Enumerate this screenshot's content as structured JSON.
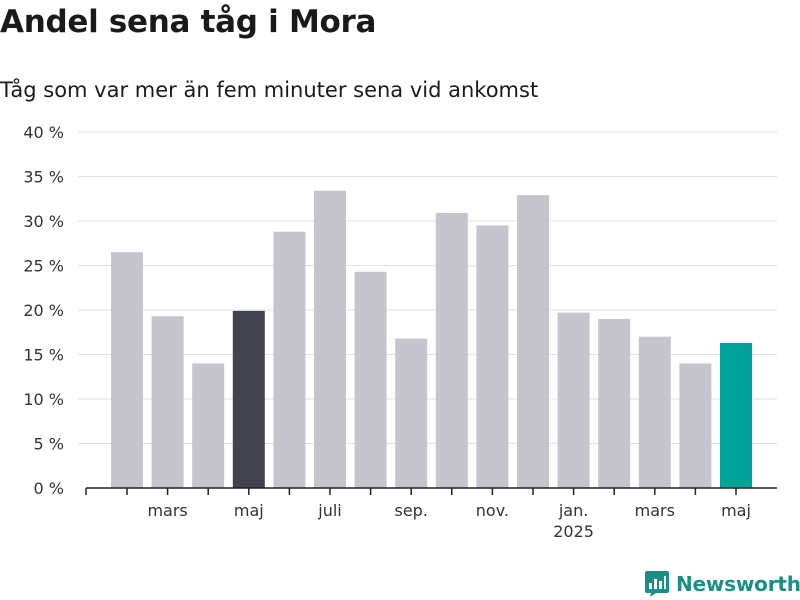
{
  "chart_data": {
    "type": "bar",
    "title": "Andel sena tåg i Mora",
    "subtitle": "Tåg som var mer än fem minuter sena vid ankomst",
    "xlabel": "",
    "ylabel": "",
    "ylim": [
      0,
      40
    ],
    "yticks": [
      0,
      5,
      10,
      15,
      20,
      25,
      30,
      35,
      40
    ],
    "ytick_labels": [
      "0 %",
      "5 %",
      "10 %",
      "15 %",
      "20 %",
      "25 %",
      "30 %",
      "35 %",
      "40 %"
    ],
    "grid": true,
    "x": [
      "2024-02",
      "2024-03",
      "2024-04",
      "2024-05",
      "2024-06",
      "2024-07",
      "2024-08",
      "2024-09",
      "2024-10",
      "2024-11",
      "2024-12",
      "2025-01",
      "2025-02",
      "2025-03",
      "2025-04",
      "2025-05"
    ],
    "values": [
      26.5,
      19.3,
      14.0,
      19.9,
      28.8,
      33.4,
      24.3,
      16.8,
      30.9,
      29.5,
      32.9,
      19.7,
      19.0,
      17.0,
      14.0,
      16.3
    ],
    "highlight": [
      {
        "x": "2024-05",
        "color": "#43424f"
      },
      {
        "x": "2025-05",
        "color": "#00a39a"
      }
    ],
    "xtick_labels": [
      {
        "x": "2024-03",
        "label": "mars"
      },
      {
        "x": "2024-05",
        "label": "maj"
      },
      {
        "x": "2024-07",
        "label": "juli"
      },
      {
        "x": "2024-09",
        "label": "sep."
      },
      {
        "x": "2024-11",
        "label": "nov."
      },
      {
        "x": "2025-01",
        "label": "jan.",
        "sublabel": "2025"
      },
      {
        "x": "2025-03",
        "label": "mars"
      },
      {
        "x": "2025-05",
        "label": "maj"
      }
    ]
  },
  "colors": {
    "bar": "#c6c5cd",
    "grid": "#e0e0e0",
    "axis": "#222222",
    "tick_text": "#333333",
    "brand": "#1a8f87"
  },
  "brand": {
    "name": "Newsworthy",
    "icon": "newsworthy-logo-icon"
  }
}
